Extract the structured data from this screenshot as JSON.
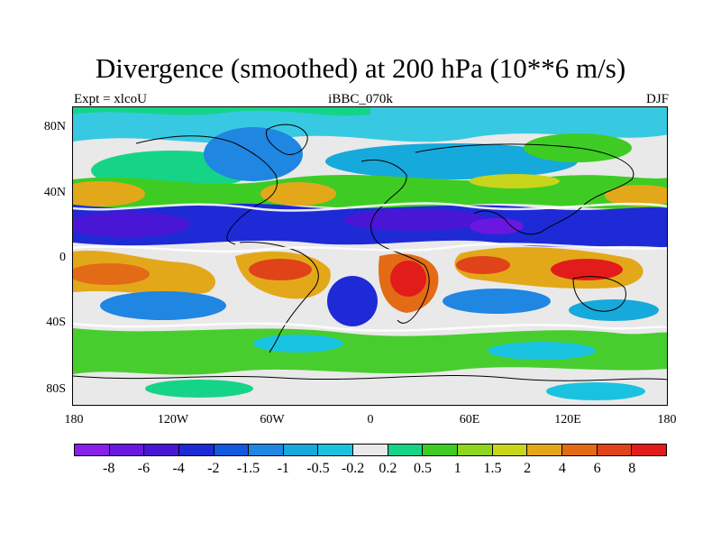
{
  "header": {
    "title": "Divergence (smoothed) at 200 hPa (10**6 m/s)",
    "left": "Expt = xlcoU",
    "center": "iBBC_070k",
    "right": "DJF"
  },
  "map": {
    "projection": "cylindrical equidistant",
    "variable": "Divergence (smoothed)",
    "level": "200 hPa",
    "units": "10**6 m/s",
    "y_ticks": [
      "80N",
      "40N",
      "0",
      "40S",
      "80S"
    ],
    "x_ticks": [
      "180",
      "120W",
      "60W",
      "0",
      "60E",
      "120E",
      "180"
    ]
  },
  "colorbar": {
    "levels": [
      "-8",
      "-6",
      "-4",
      "-2",
      "-1.5",
      "-1",
      "-0.5",
      "-0.2",
      "0.2",
      "0.5",
      "1",
      "1.5",
      "2",
      "4",
      "6",
      "8"
    ],
    "colors": [
      "#8a1fe8",
      "#6a17e0",
      "#4a16d6",
      "#1e2ad6",
      "#1159de",
      "#1f86e2",
      "#16a9dc",
      "#19c3e0",
      "#e9e9e9",
      "#15d488",
      "#3ecc24",
      "#8fd41e",
      "#c9d51a",
      "#e3a81a",
      "#e36b16",
      "#e0431a",
      "#e21b1b"
    ]
  }
}
